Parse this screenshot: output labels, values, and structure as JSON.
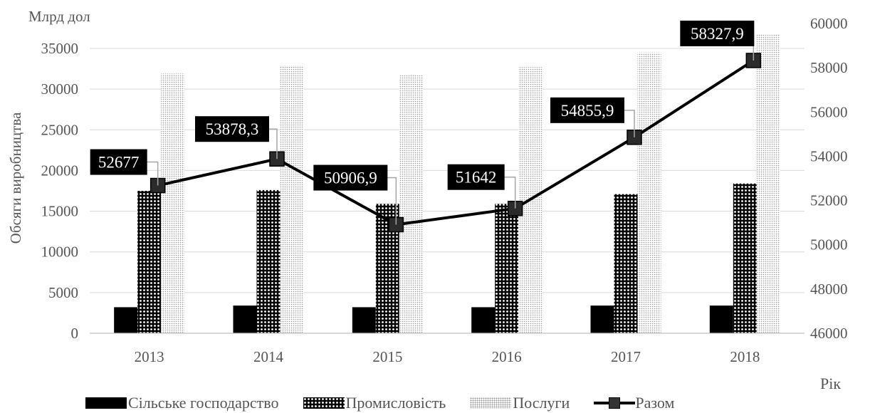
{
  "chart_data": {
    "type": "bar",
    "categories": [
      "2013",
      "2014",
      "2015",
      "2016",
      "2017",
      "2018"
    ],
    "ylabel": "Обсяги виробництва",
    "yunit": "Млрд дол",
    "xlabel": "Рік",
    "ylim": [
      0,
      35000
    ],
    "yticks": [
      "0",
      "5000",
      "10000",
      "15000",
      "20000",
      "25000",
      "30000",
      "35000"
    ],
    "y2lim": [
      46000,
      60000
    ],
    "y2ticks": [
      "46000",
      "48000",
      "50000",
      "52000",
      "54000",
      "56000",
      "58000",
      "60000"
    ],
    "grid": true,
    "legend_position": "bottom",
    "series": [
      {
        "name": "Сільське господарство",
        "type": "bar",
        "axis": "left",
        "color": "#000000",
        "values": [
          3200,
          3400,
          3200,
          3200,
          3400,
          3400
        ]
      },
      {
        "name": "Промисловість",
        "type": "bar",
        "axis": "left",
        "pattern": "dense-dots",
        "values": [
          17500,
          17600,
          15900,
          15900,
          17100,
          18400
        ]
      },
      {
        "name": "Послуги",
        "type": "bar",
        "axis": "left",
        "pattern": "light-dots",
        "values": [
          31900,
          32900,
          31800,
          32700,
          34500,
          36700
        ]
      },
      {
        "name": "Разом",
        "type": "line",
        "axis": "right",
        "color": "#000000",
        "values": [
          52677,
          53878.3,
          50906.9,
          51642,
          54855.9,
          58327.9
        ],
        "labels": [
          "52677",
          "53878,3",
          "50906,9",
          "51642",
          "54855,9",
          "58327,9"
        ]
      }
    ]
  }
}
